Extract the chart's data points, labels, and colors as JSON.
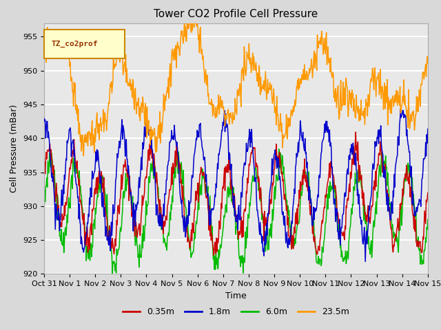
{
  "title": "Tower CO2 Profile Cell Pressure",
  "xlabel": "Time",
  "ylabel": "Cell Pressure (mBar)",
  "ylim": [
    920,
    957
  ],
  "yticks": [
    920,
    925,
    930,
    935,
    940,
    945,
    950,
    955
  ],
  "legend_label": "TZ_co2prof",
  "series_labels": [
    "0.35m",
    "1.8m",
    "6.0m",
    "23.5m"
  ],
  "series_colors": [
    "#cc0000",
    "#0000cc",
    "#00bb00",
    "#ff9900"
  ],
  "xtick_labels": [
    "Oct 31",
    "Nov 1",
    "Nov 2",
    "Nov 3",
    "Nov 4",
    "Nov 5",
    "Nov 6",
    "Nov 7",
    "Nov 8",
    "Nov 9",
    "Nov 10",
    "Nov 11",
    "Nov 12",
    "Nov 13",
    "Nov 14",
    "Nov 15"
  ],
  "background_color": "#d9d9d9",
  "plot_bg_color": "#e8e8e8",
  "grid_color": "#ffffff",
  "title_fontsize": 11,
  "axis_fontsize": 9,
  "tick_fontsize": 8
}
